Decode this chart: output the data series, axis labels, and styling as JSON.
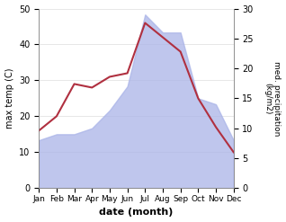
{
  "months": [
    "Jan",
    "Feb",
    "Mar",
    "Apr",
    "May",
    "Jun",
    "Jul",
    "Aug",
    "Sep",
    "Oct",
    "Nov",
    "Dec"
  ],
  "precipitation": [
    8,
    9,
    9,
    10,
    13,
    17,
    29,
    26,
    26,
    15,
    14,
    8
  ],
  "temp_line": [
    16,
    20,
    29,
    28,
    31,
    32,
    46,
    42,
    38,
    25,
    17,
    10
  ],
  "ylim_left": [
    0,
    50
  ],
  "ylim_right": [
    0,
    30
  ],
  "ylabel_left": "max temp (C)",
  "ylabel_right": "med. precipitation\n(kg/m2)",
  "xlabel": "date (month)",
  "fill_color": "#aab4e8",
  "fill_alpha": 0.75,
  "line_color": "#b03040",
  "line_width": 1.5,
  "bg_color": "#ffffff",
  "yticks_left": [
    0,
    10,
    20,
    30,
    40,
    50
  ],
  "yticks_right": [
    0,
    5,
    10,
    15,
    20,
    25,
    30
  ]
}
